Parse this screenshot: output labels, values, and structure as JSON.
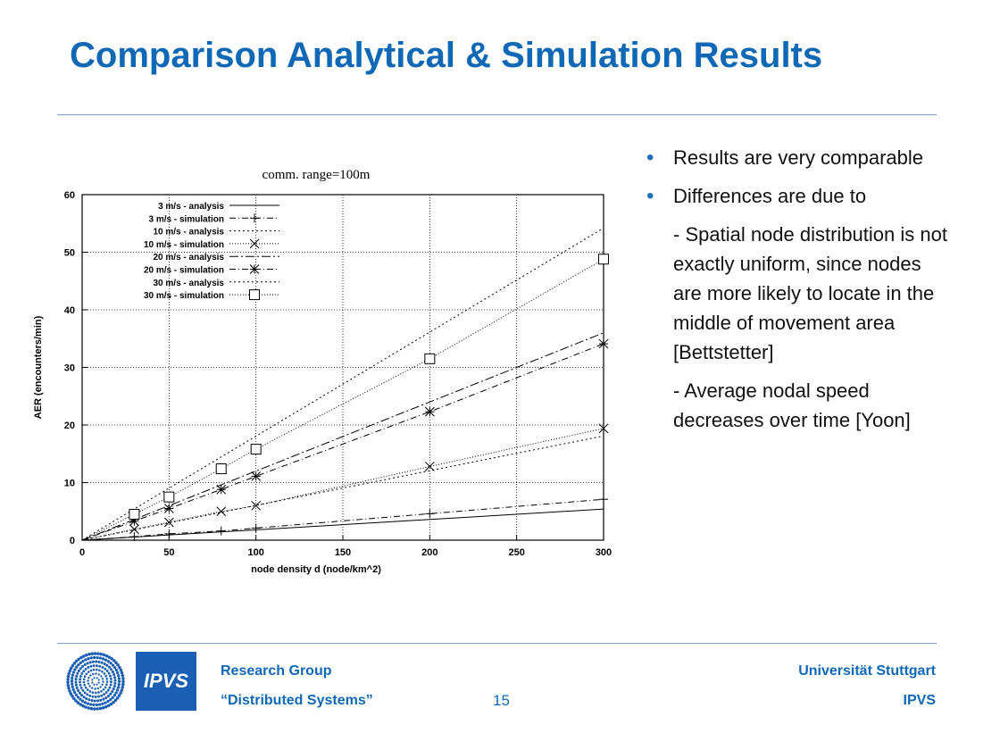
{
  "slide": {
    "title": "Comparison Analytical & Simulation Results",
    "page_number": "15"
  },
  "bullets": [
    {
      "text": "Results are very comparable"
    },
    {
      "text": "Differences are due to"
    }
  ],
  "sub_points": [
    "- Spatial node distribution is not exactly uniform, since nodes are more likely to locate in the middle of movement area [Bettstetter]",
    "- Average nodal speed decreases over time [Yoon]"
  ],
  "footer": {
    "left_line1": "Research Group",
    "left_line2": "“Distributed Systems”",
    "right_line1": "Universität Stuttgart",
    "right_line2": "IPVS",
    "logo_text": "IPVS"
  },
  "colors": {
    "title": "#0f68b5",
    "accent": "#1a5fb4"
  },
  "chart_data": {
    "type": "line",
    "title": "comm. range=100m",
    "xlabel": "node density d (node/km^2)",
    "ylabel": "AER (encounters/min)",
    "xlim": [
      0,
      300
    ],
    "ylim": [
      0,
      60
    ],
    "x_ticks": [
      "0",
      "50",
      "100",
      "150",
      "200",
      "250",
      "300"
    ],
    "y_ticks": [
      "0",
      "10",
      "20",
      "30",
      "40",
      "50",
      "60"
    ],
    "grid": true,
    "legend_position": "top-left",
    "series": [
      {
        "name": "3 m/s - analysis",
        "dash": "solid",
        "marker": "none",
        "x": [
          0,
          300
        ],
        "y": [
          0,
          5.4
        ]
      },
      {
        "name": "3 m/s - simulation",
        "dash": "dashdot",
        "marker": "plus",
        "x": [
          0,
          30,
          50,
          80,
          100,
          200,
          300
        ],
        "y": [
          0,
          0.6,
          1.1,
          1.6,
          2.1,
          4.6,
          7.1
        ]
      },
      {
        "name": "10 m/s - analysis",
        "dash": "dotted",
        "marker": "none",
        "x": [
          0,
          300
        ],
        "y": [
          0,
          18.1
        ]
      },
      {
        "name": "10 m/s - simulation",
        "dash": "dotted-dense",
        "marker": "x",
        "x": [
          0,
          30,
          50,
          80,
          100,
          200,
          300
        ],
        "y": [
          0,
          1.9,
          3.1,
          5.0,
          6.0,
          12.8,
          19.4
        ]
      },
      {
        "name": "20 m/s - analysis",
        "dash": "dashdot-long",
        "marker": "none",
        "x": [
          0,
          300
        ],
        "y": [
          0,
          36.0
        ]
      },
      {
        "name": "20 m/s - simulation",
        "dash": "dashdot",
        "marker": "star",
        "x": [
          0,
          30,
          50,
          80,
          100,
          200,
          300
        ],
        "y": [
          0,
          3.3,
          5.5,
          8.8,
          11.1,
          22.3,
          34.1
        ]
      },
      {
        "name": "30 m/s - analysis",
        "dash": "dotted",
        "marker": "none",
        "x": [
          0,
          300
        ],
        "y": [
          0,
          54.2
        ]
      },
      {
        "name": "30 m/s - simulation",
        "dash": "dotted-dense",
        "marker": "square",
        "x": [
          0,
          30,
          50,
          80,
          100,
          200,
          300
        ],
        "y": [
          0,
          4.5,
          7.5,
          12.4,
          15.8,
          31.5,
          48.8
        ]
      }
    ]
  }
}
